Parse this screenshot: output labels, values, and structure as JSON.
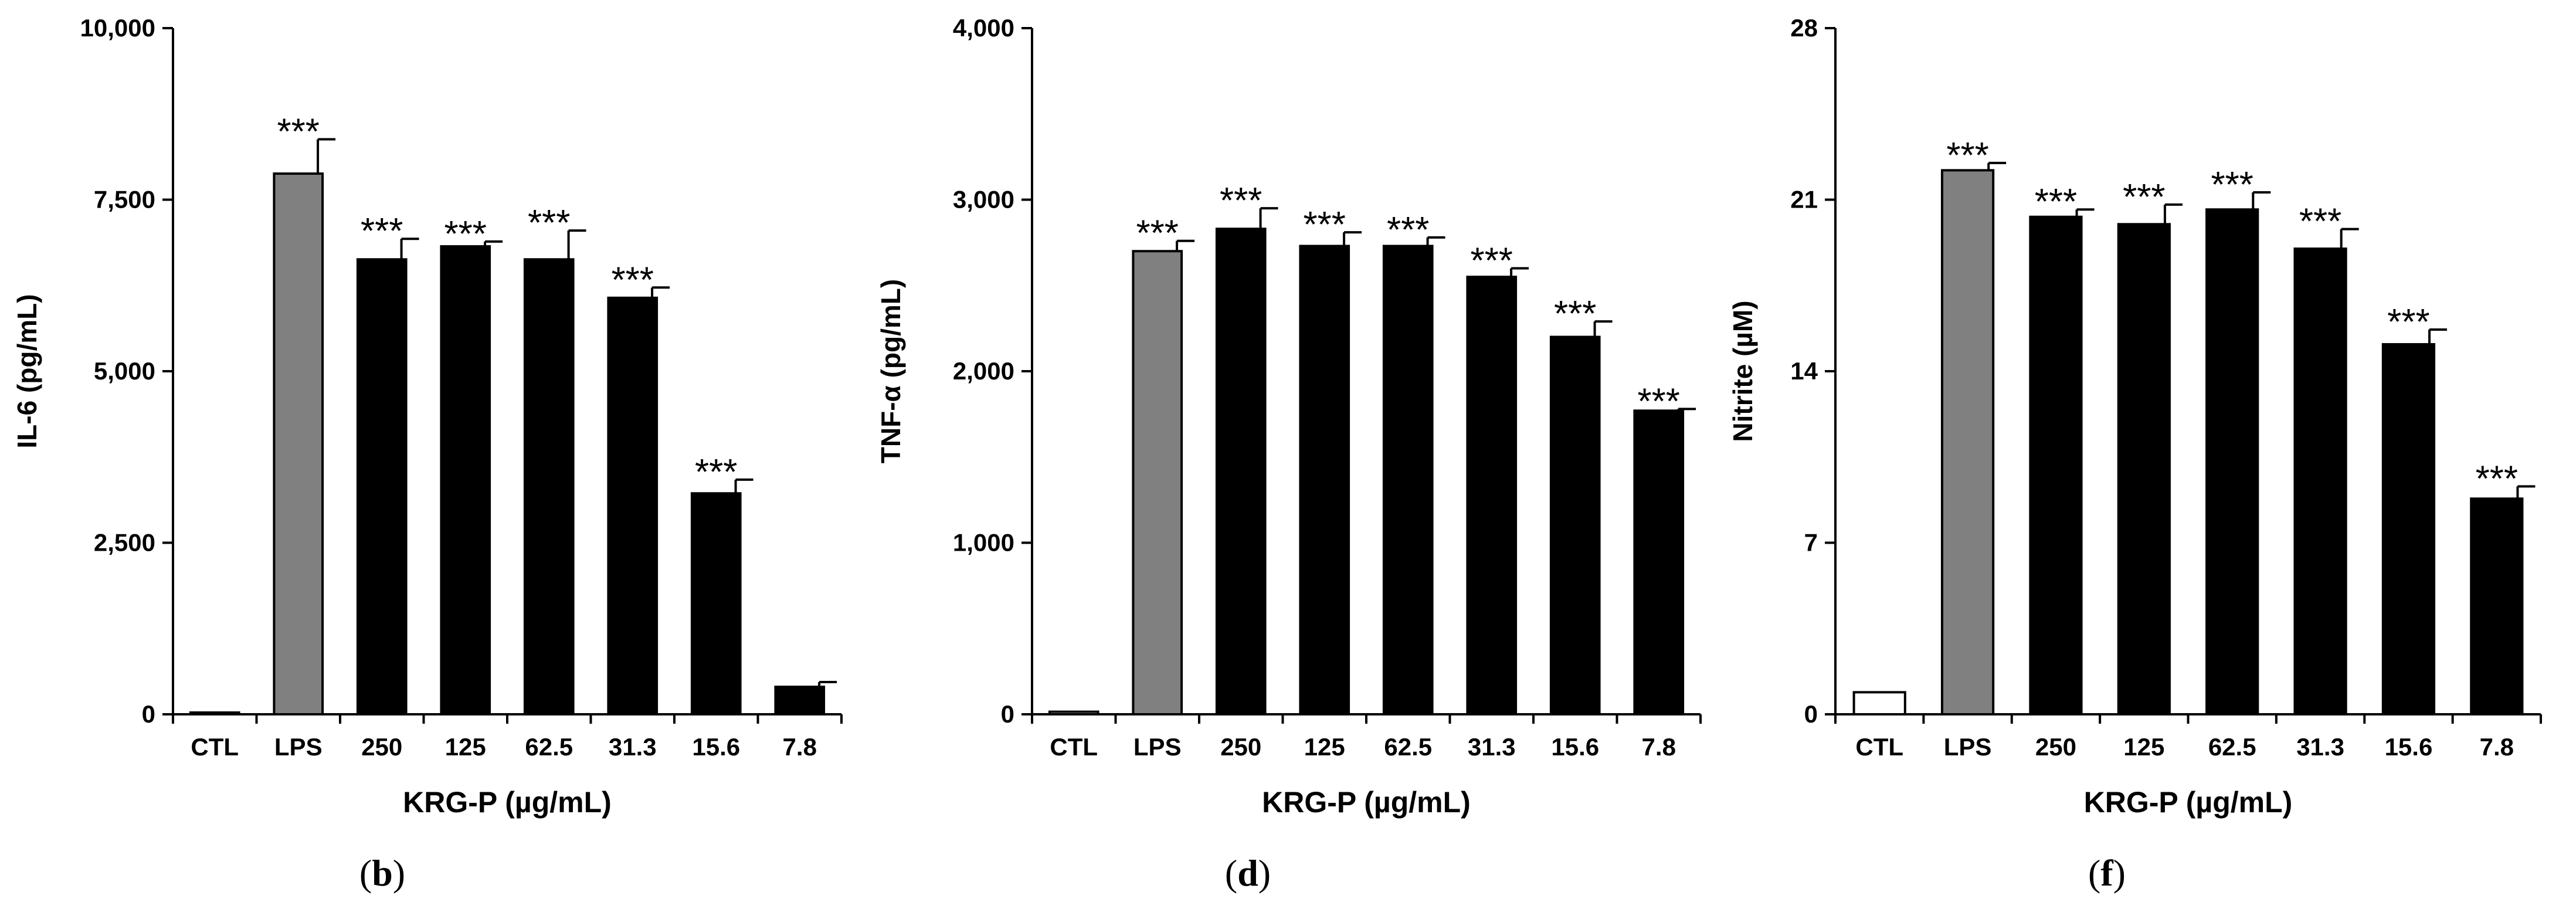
{
  "figure": {
    "panels": [
      "b",
      "d",
      "f"
    ]
  },
  "chart_data": [
    {
      "type": "bar",
      "panel_label": "b",
      "title": "",
      "xlabel": "KRG-P (µg/mL)",
      "ylabel": "IL-6 (pg/mL)",
      "ylim": [
        0,
        10000
      ],
      "yticks": [
        0,
        2500,
        5000,
        7500,
        10000
      ],
      "ytick_labels": [
        "0",
        "2,500",
        "5,000",
        "7,500",
        "10,000"
      ],
      "categories": [
        "CTL",
        "LPS",
        "250",
        "125",
        "62.5",
        "31.3",
        "15.6",
        "7.8"
      ],
      "values": [
        20,
        7880,
        6630,
        6820,
        6630,
        6070,
        3220,
        400
      ],
      "errors": [
        0,
        500,
        300,
        70,
        420,
        150,
        200,
        70
      ],
      "fills": [
        "#ffffff",
        "#808080",
        "#000000",
        "#000000",
        "#000000",
        "#000000",
        "#000000",
        "#000000"
      ],
      "significance": [
        "",
        "***",
        "***",
        "***",
        "***",
        "***",
        "***",
        ""
      ]
    },
    {
      "type": "bar",
      "panel_label": "d",
      "title": "",
      "xlabel": "KRG-P (µg/mL)",
      "ylabel": "TNF-α (pg/mL)",
      "ylim": [
        0,
        4000
      ],
      "yticks": [
        0,
        1000,
        2000,
        3000,
        4000
      ],
      "ytick_labels": [
        "0",
        "1,000",
        "2,000",
        "3,000",
        "4,000"
      ],
      "categories": [
        "CTL",
        "LPS",
        "250",
        "125",
        "62.5",
        "31.3",
        "15.6",
        "7.8"
      ],
      "values": [
        15,
        2700,
        2830,
        2730,
        2730,
        2550,
        2200,
        1770
      ],
      "errors": [
        0,
        60,
        120,
        80,
        50,
        50,
        90,
        10
      ],
      "fills": [
        "#ffffff",
        "#808080",
        "#000000",
        "#000000",
        "#000000",
        "#000000",
        "#000000",
        "#000000"
      ],
      "significance": [
        "",
        "***",
        "***",
        "***",
        "***",
        "***",
        "***",
        "***"
      ]
    },
    {
      "type": "bar",
      "panel_label": "f",
      "title": "",
      "xlabel": "KRG-P (µg/mL)",
      "ylabel": "Nitrite (µM)",
      "ylim": [
        0,
        28
      ],
      "yticks": [
        0,
        7,
        14,
        21,
        28
      ],
      "ytick_labels": [
        "0",
        "7",
        "14",
        "21",
        "28"
      ],
      "categories": [
        "CTL",
        "LPS",
        "250",
        "125",
        "62.5",
        "31.3",
        "15.6",
        "7.8"
      ],
      "values": [
        0.9,
        22.2,
        20.3,
        20.0,
        20.6,
        19.0,
        15.1,
        8.8
      ],
      "errors": [
        0,
        0.3,
        0.3,
        0.8,
        0.7,
        0.8,
        0.6,
        0.5
      ],
      "fills": [
        "#ffffff",
        "#808080",
        "#000000",
        "#000000",
        "#000000",
        "#000000",
        "#000000",
        "#000000"
      ],
      "significance": [
        "",
        "***",
        "***",
        "***",
        "***",
        "***",
        "***",
        "***"
      ]
    }
  ]
}
